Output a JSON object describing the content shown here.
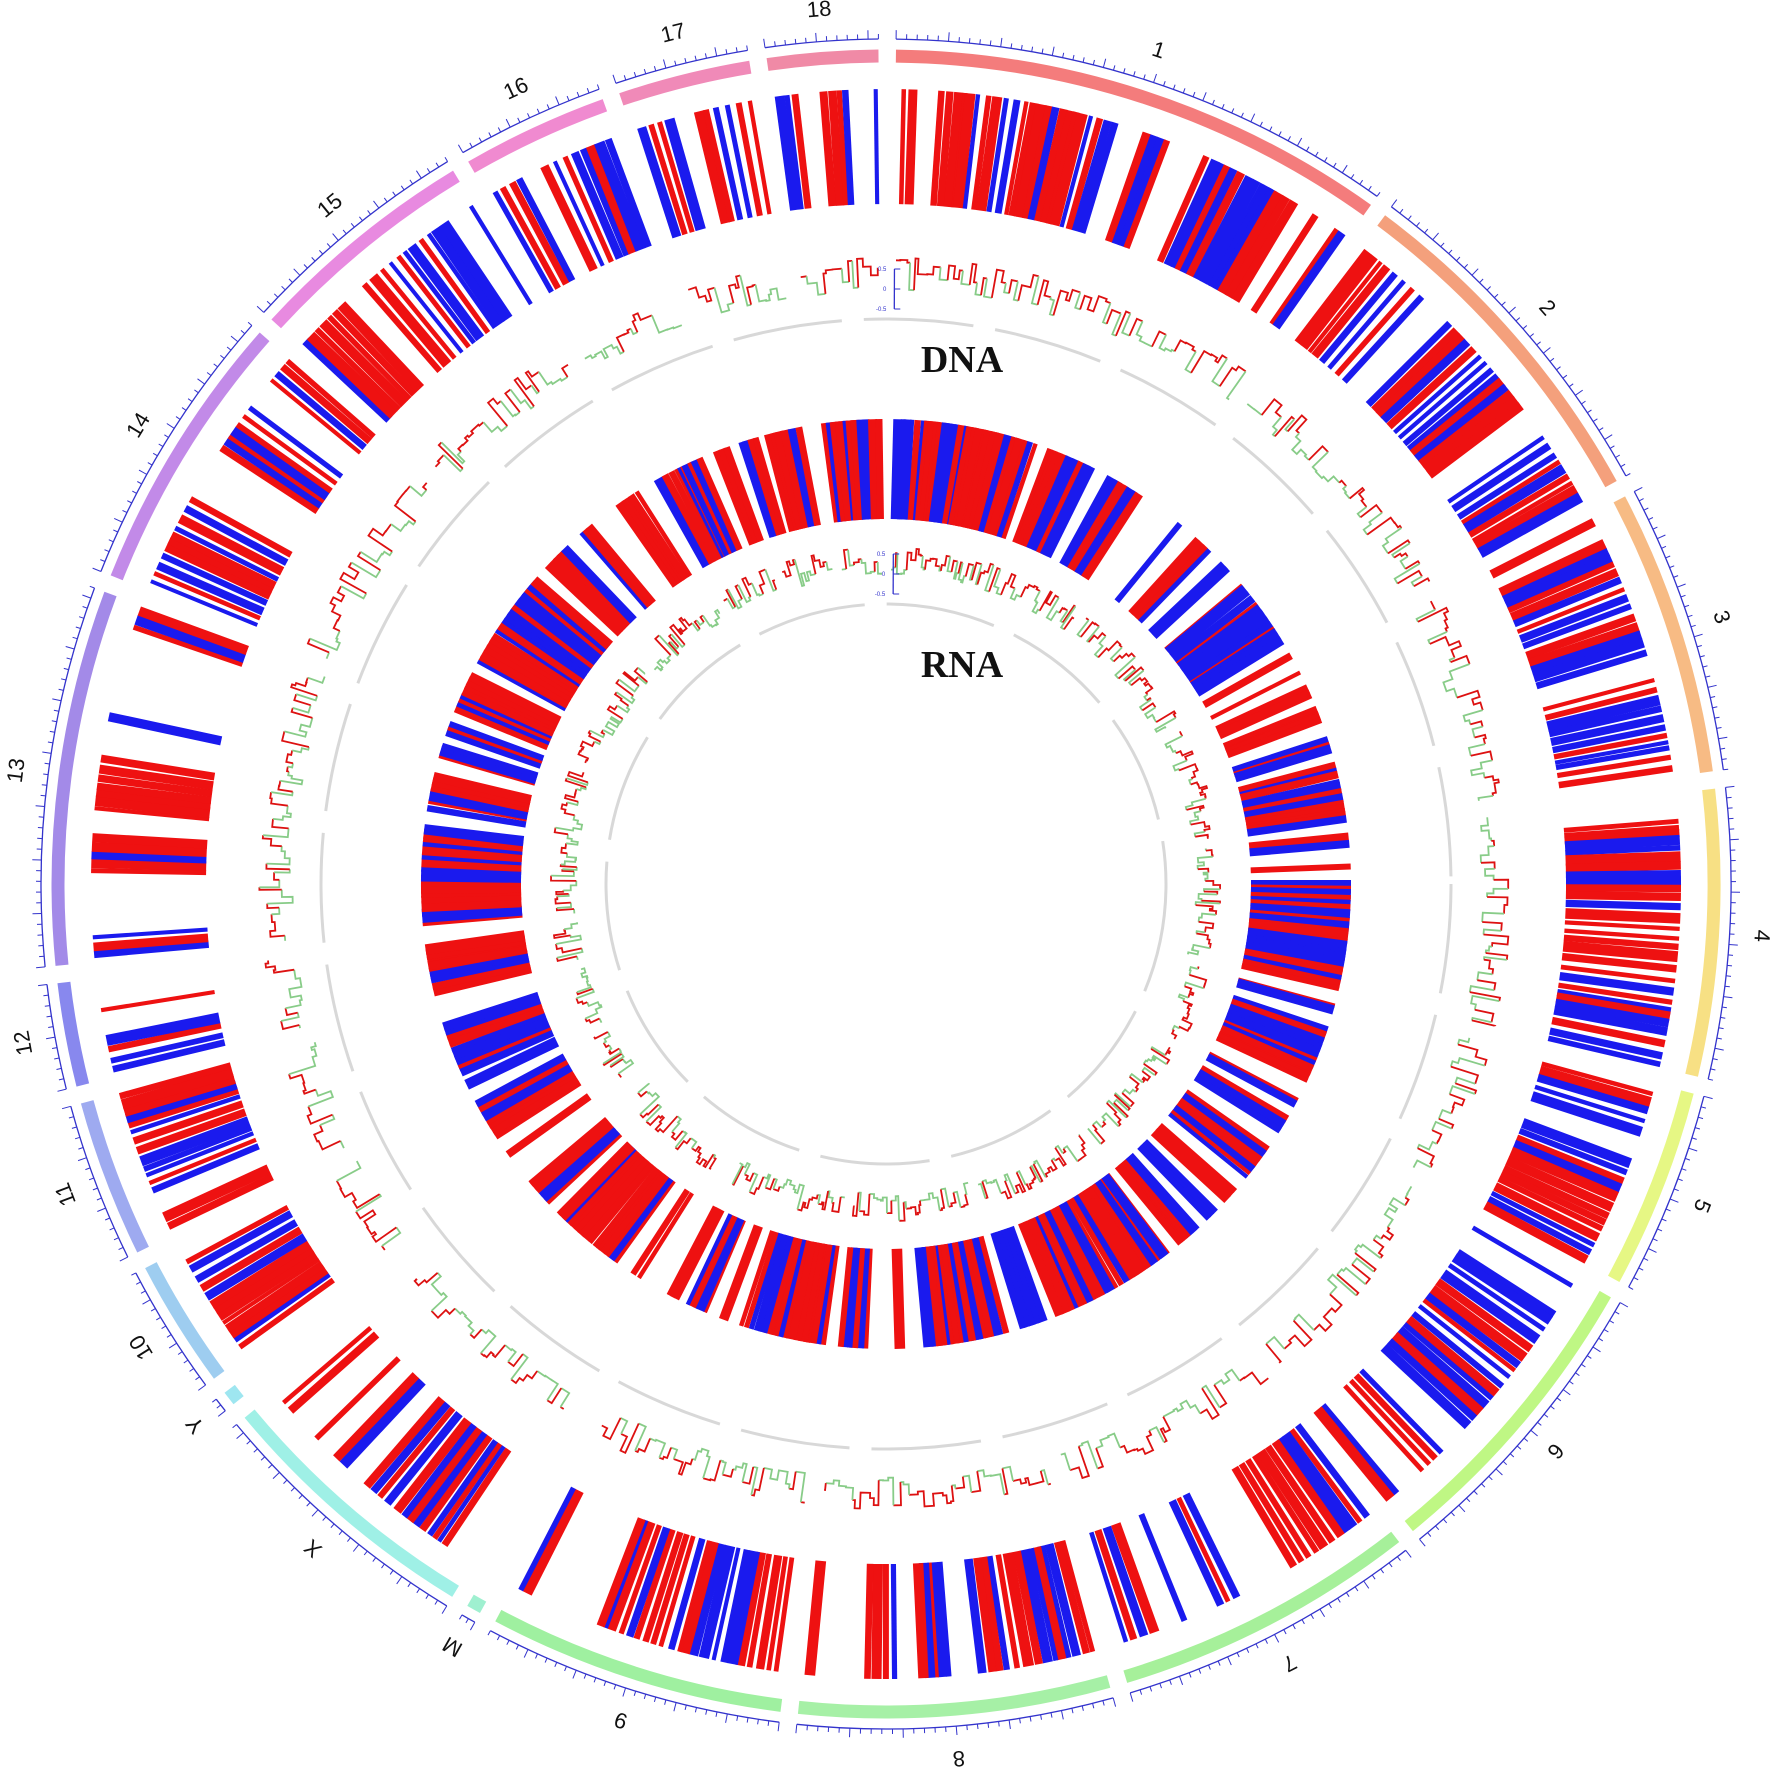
{
  "figure": {
    "type": "circos",
    "track_titles": {
      "dna": "DNA",
      "rna": "RNA"
    },
    "scale_labels": {
      "dna": [
        "0.5",
        "0",
        "-0.5"
      ],
      "rna": [
        "0.5",
        "0",
        "-0.5"
      ]
    },
    "colors": {
      "gain": "#ee1111",
      "loss": "#1a1aee",
      "line_high": "#dd1111",
      "line_low": "#88cc88",
      "axis": "#3333cc",
      "guide": "#d8d8d8"
    }
  },
  "chromosomes": [
    {
      "name": "1",
      "color": "#f47c7c",
      "weight": 14.0
    },
    {
      "name": "2",
      "color": "#f4a07c",
      "weight": 9.8
    },
    {
      "name": "3",
      "color": "#f7bb84",
      "weight": 8.0
    },
    {
      "name": "4",
      "color": "#f7e084",
      "weight": 8.0
    },
    {
      "name": "5",
      "color": "#e6f784",
      "weight": 5.6
    },
    {
      "name": "6",
      "color": "#bff784",
      "weight": 8.5
    },
    {
      "name": "7",
      "color": "#a6f09a",
      "weight": 8.5
    },
    {
      "name": "8",
      "color": "#a6f0a6",
      "weight": 8.7
    },
    {
      "name": "9",
      "color": "#9ff0a0",
      "weight": 8.3
    },
    {
      "name": "M",
      "color": "#9ff0d0",
      "weight": 0.4
    },
    {
      "name": "X",
      "color": "#9ff0e6",
      "weight": 7.6
    },
    {
      "name": "Y",
      "color": "#9ee6f0",
      "weight": 0.4
    },
    {
      "name": "10",
      "color": "#9ecdf0",
      "weight": 3.6
    },
    {
      "name": "11",
      "color": "#9eaaf0",
      "weight": 4.4
    },
    {
      "name": "12",
      "color": "#8888ee",
      "weight": 2.9
    },
    {
      "name": "13",
      "color": "#a38ae8",
      "weight": 10.5
    },
    {
      "name": "14",
      "color": "#c28ae8",
      "weight": 7.9
    },
    {
      "name": "15",
      "color": "#e88ae0",
      "weight": 6.5
    },
    {
      "name": "16",
      "color": "#f08ad0",
      "weight": 4.1
    },
    {
      "name": "17",
      "color": "#f08ab8",
      "weight": 3.7
    },
    {
      "name": "18",
      "color": "#f08aa6",
      "weight": 3.1
    }
  ]
}
